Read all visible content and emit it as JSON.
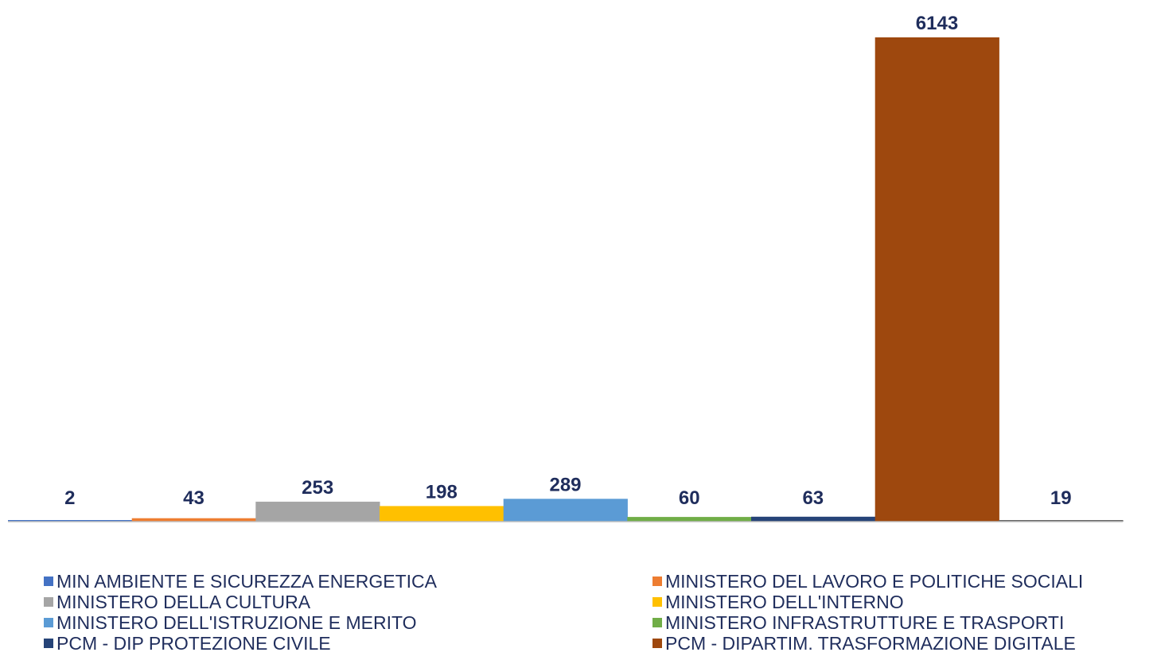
{
  "chart_data": {
    "type": "bar",
    "title": "",
    "xlabel": "",
    "ylabel": "",
    "ylim": [
      0,
      6143
    ],
    "grid": false,
    "legend_position": "bottom",
    "categories": [
      "MIN AMBIENTE E SICUREZZA ENERGETICA",
      "MINISTERO DEL LAVORO E POLITICHE SOCIALI",
      "MINISTERO DELLA CULTURA",
      "MINISTERO DELL'INTERNO",
      "MINISTERO DELL'ISTRUZIONE E MERITO",
      "MINISTERO INFRASTRUTTURE E TRASPORTI",
      "PCM - DIP PROTEZIONE CIVILE",
      "PCM - DIPARTIM. TRASFORMAZIONE DIGITALE",
      ""
    ],
    "values": [
      2,
      43,
      253,
      198,
      289,
      60,
      63,
      6143,
      19
    ],
    "data_labels": [
      "2",
      "43",
      "253",
      "198",
      "289",
      "60",
      "63",
      "6143",
      "19"
    ],
    "colors": [
      "#4472c4",
      "#ed7d31",
      "#a5a5a5",
      "#ffc000",
      "#5b9bd5",
      "#70ad47",
      "#264478",
      "#9e480e",
      "#636363"
    ],
    "label_color": "#1f2d5c",
    "axis_color": "#bfbfbf"
  }
}
